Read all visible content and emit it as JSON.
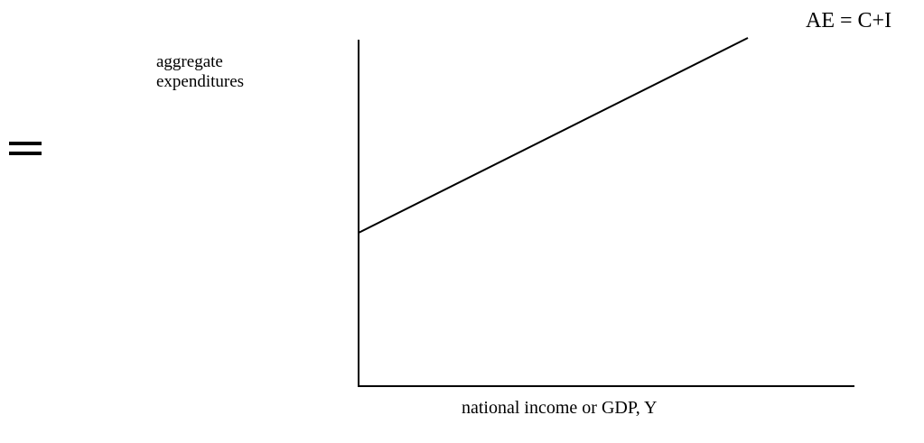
{
  "left_symbol": "=",
  "y_axis_label": {
    "line1": "aggregate",
    "line2": "expenditures"
  },
  "x_axis_label": "national income or GDP, Y",
  "line_label": "AE = C+I",
  "colors": {
    "ink": "#000000",
    "background": "#ffffff"
  }
}
